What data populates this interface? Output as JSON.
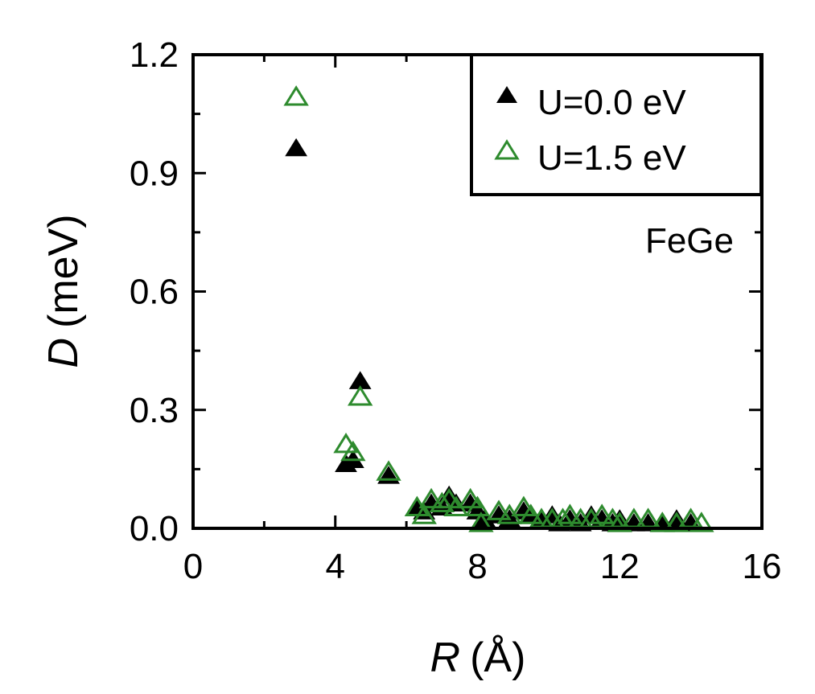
{
  "chart_data": {
    "type": "scatter",
    "title": "",
    "xlabel": "(Å)",
    "xlabel_var": "R",
    "ylabel": "(meV)",
    "ylabel_var": "D",
    "xlim": [
      0,
      16
    ],
    "ylim": [
      0,
      1.2
    ],
    "xticks": [
      "0",
      "4",
      "8",
      "12",
      "16"
    ],
    "yticks": [
      "0.0",
      "0.3",
      "0.6",
      "0.9",
      "1.2"
    ],
    "grid": false,
    "legend_position": "top-right",
    "annotation": "FeGe",
    "series": [
      {
        "name": "U=0.0 eV",
        "marker": "filled-triangle",
        "color": "#000000",
        "points": [
          [
            2.9,
            0.96
          ],
          [
            4.3,
            0.16
          ],
          [
            4.5,
            0.17
          ],
          [
            4.7,
            0.37
          ],
          [
            5.5,
            0.13
          ],
          [
            6.3,
            0.05
          ],
          [
            6.5,
            0.04
          ],
          [
            6.7,
            0.06
          ],
          [
            7.0,
            0.05
          ],
          [
            7.2,
            0.08
          ],
          [
            7.4,
            0.06
          ],
          [
            7.8,
            0.06
          ],
          [
            8.0,
            0.04
          ],
          [
            8.2,
            0.02
          ],
          [
            8.6,
            0.03
          ],
          [
            8.9,
            0.02
          ],
          [
            9.3,
            0.04
          ],
          [
            9.5,
            0.03
          ],
          [
            9.8,
            0.02
          ],
          [
            10.1,
            0.03
          ],
          [
            10.3,
            0.01
          ],
          [
            10.6,
            0.02
          ],
          [
            10.9,
            0.01
          ],
          [
            11.2,
            0.03
          ],
          [
            11.5,
            0.02
          ],
          [
            11.8,
            0.01
          ],
          [
            12.0,
            0.02
          ],
          [
            12.4,
            0.01
          ],
          [
            12.8,
            0.01
          ],
          [
            13.2,
            0.01
          ],
          [
            13.6,
            0.02
          ],
          [
            14.0,
            0.01
          ]
        ]
      },
      {
        "name": "U=1.5 eV",
        "marker": "open-triangle",
        "color": "#2e8b2e",
        "points": [
          [
            2.9,
            1.09
          ],
          [
            4.3,
            0.21
          ],
          [
            4.5,
            0.19
          ],
          [
            4.7,
            0.33
          ],
          [
            5.5,
            0.14
          ],
          [
            6.3,
            0.05
          ],
          [
            6.5,
            0.03
          ],
          [
            6.7,
            0.07
          ],
          [
            7.0,
            0.06
          ],
          [
            7.2,
            0.07
          ],
          [
            7.4,
            0.05
          ],
          [
            7.8,
            0.07
          ],
          [
            8.0,
            0.05
          ],
          [
            8.1,
            0.01
          ],
          [
            8.6,
            0.04
          ],
          [
            8.9,
            0.03
          ],
          [
            9.3,
            0.05
          ],
          [
            9.5,
            0.03
          ],
          [
            9.8,
            0.02
          ],
          [
            10.1,
            0.02
          ],
          [
            10.4,
            0.02
          ],
          [
            10.6,
            0.03
          ],
          [
            10.9,
            0.02
          ],
          [
            11.2,
            0.02
          ],
          [
            11.5,
            0.03
          ],
          [
            11.8,
            0.02
          ],
          [
            12.0,
            0.01
          ],
          [
            12.4,
            0.02
          ],
          [
            12.8,
            0.02
          ],
          [
            13.2,
            0.01
          ],
          [
            13.6,
            0.01
          ],
          [
            14.0,
            0.02
          ],
          [
            14.3,
            0.01
          ]
        ]
      }
    ]
  }
}
